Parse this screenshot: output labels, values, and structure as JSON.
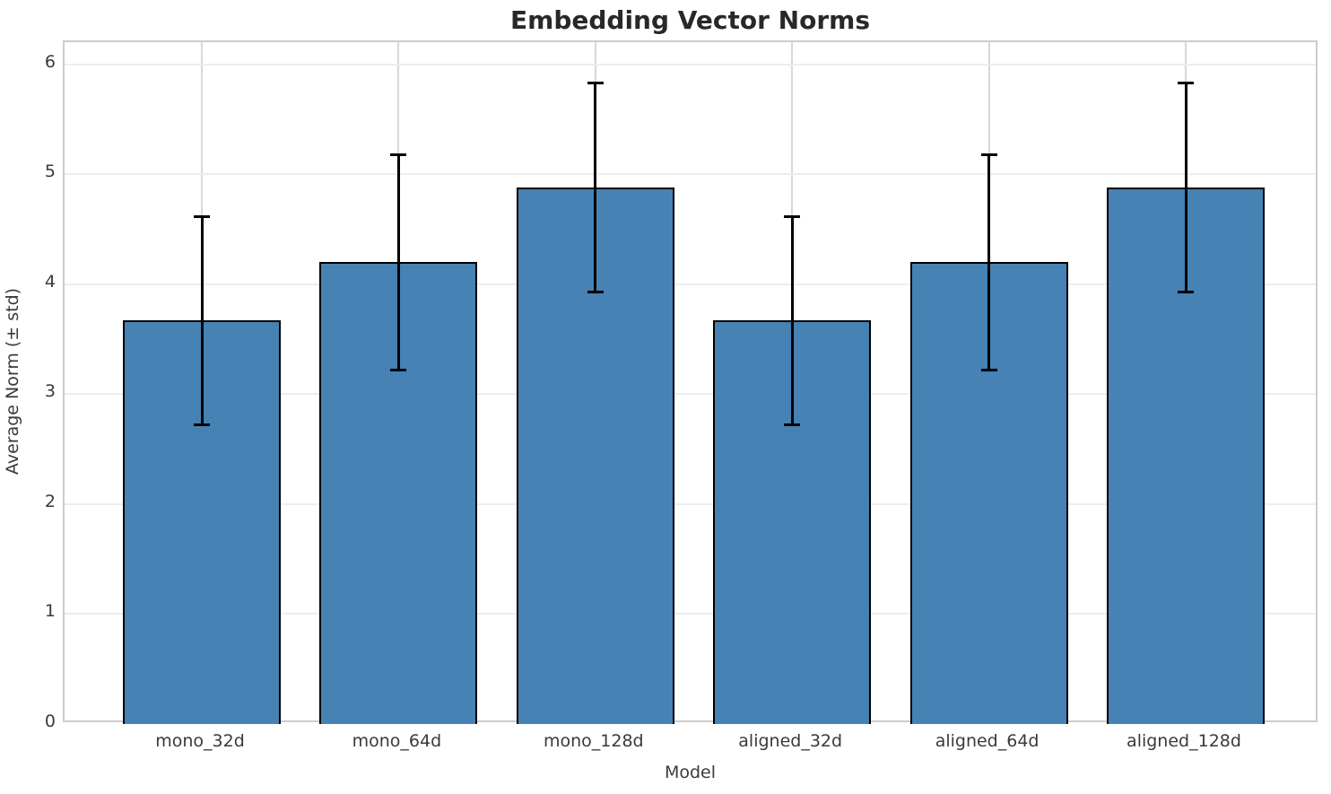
{
  "title": "Embedding Vector Norms",
  "chart_data": {
    "type": "bar",
    "title": "Embedding Vector Norms",
    "xlabel": "Model",
    "ylabel": "Average Norm (± std)",
    "categories": [
      "mono_32d",
      "mono_64d",
      "mono_128d",
      "aligned_32d",
      "aligned_64d",
      "aligned_128d"
    ],
    "values": [
      3.67,
      4.2,
      4.88,
      3.67,
      4.2,
      4.88
    ],
    "errors": [
      0.95,
      0.98,
      0.95,
      0.95,
      0.98,
      0.95
    ],
    "error_tops": [
      4.62,
      5.18,
      5.83,
      4.62,
      5.18,
      5.83
    ],
    "error_bottoms": [
      2.72,
      3.22,
      3.93,
      2.72,
      3.22,
      3.93
    ],
    "ylim": [
      0,
      6.204
    ],
    "yticks": [
      0,
      1,
      2,
      3,
      4,
      5,
      6
    ],
    "grid": true,
    "legend": "none",
    "bar_color": "#4682b4",
    "bar_edge_color": "#000000",
    "error_color": "#000000",
    "grid_color_h": "#ededed",
    "grid_color_v": "#d8d8d8",
    "spine_color": "#cccccc",
    "title_color": "#282828",
    "label_color": "#3a3a3a"
  }
}
